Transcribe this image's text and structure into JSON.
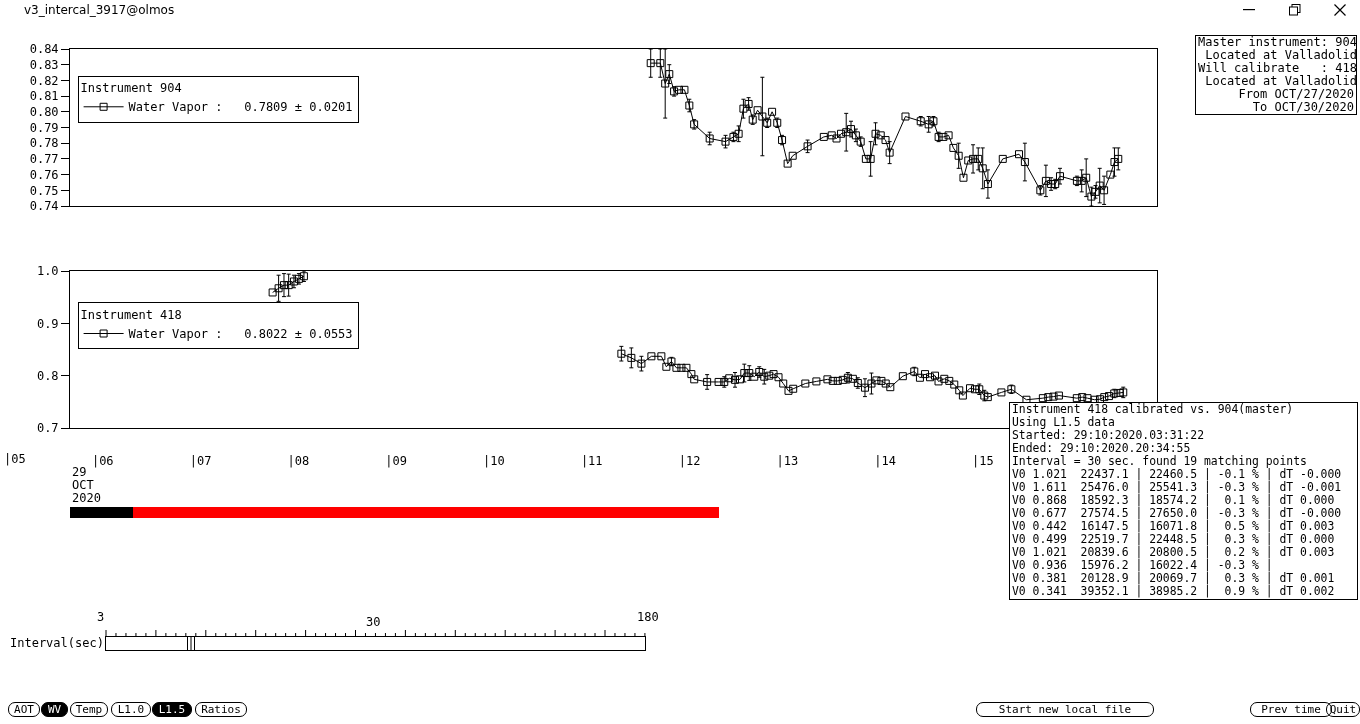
{
  "chart_data": [
    {
      "type": "line",
      "legend_title": "Instrument 904",
      "legend": "top left",
      "marker": "square",
      "line_style": "solid",
      "tick_labels": "y",
      "xlim": [
        5.665,
        16.78
      ],
      "ylim": [
        0.74,
        0.84
      ],
      "yticks": [
        0.74,
        0.75,
        0.76,
        0.77,
        0.78,
        0.79,
        {
          "value": 0.8,
          "label": "0.80"
        },
        0.81,
        0.82,
        0.83,
        0.84
      ],
      "series": [
        {
          "name": "Water Vapor :   0.7809 ± 0.0201",
          "color": "#000000",
          "x": [
            11.603,
            11.701,
            11.751,
            11.793,
            11.842,
            11.892,
            11.948,
            11.998,
            12.047,
            12.206,
            12.368,
            12.449,
            12.502,
            12.551,
            12.604,
            12.646,
            12.696,
            12.745,
            12.794,
            12.844,
            12.897,
            12.946,
            13.003,
            13.055,
            13.207,
            13.373,
            13.454,
            13.503,
            13.549,
            13.602,
            13.651,
            13.701,
            13.75,
            13.803,
            13.852,
            13.902,
            13.955,
            14.004,
            14.046,
            14.208,
            14.364,
            14.445,
            14.494,
            14.547,
            14.596,
            14.649,
            14.698,
            14.752,
            14.801,
            14.85,
            14.899,
            14.952,
            14.998,
            15.051,
            15.203,
            15.369,
            15.429,
            15.587,
            15.644,
            15.697,
            15.739,
            15.788,
            15.961,
            16.01,
            16.056,
            16.109,
            16.151,
            16.194,
            16.239,
            16.303,
            16.345,
            16.384
          ],
          "values": [
            0.831,
            0.831,
            0.818,
            0.824,
            0.813,
            0.814,
            0.814,
            0.804,
            0.792,
            0.783,
            0.781,
            0.784,
            0.786,
            0.802,
            0.805,
            0.795,
            0.801,
            0.797,
            0.793,
            0.8,
            0.793,
            0.782,
            0.767,
            0.772,
            0.778,
            0.784,
            0.785,
            0.783,
            0.786,
            0.787,
            0.789,
            0.785,
            0.781,
            0.77,
            0.77,
            0.786,
            0.785,
            0.782,
            0.774,
            0.797,
            0.794,
            0.792,
            0.794,
            0.784,
            0.784,
            0.785,
            0.777,
            0.772,
            0.758,
            0.769,
            0.77,
            0.77,
            0.764,
            0.754,
            0.77,
            0.773,
            0.768,
            0.75,
            0.756,
            0.754,
            0.754,
            0.759,
            0.756,
            0.756,
            0.758,
            0.746,
            0.749,
            0.753,
            0.75,
            0.76,
            0.768,
            0.77
          ],
          "errors": [
            0.009,
            0.009,
            0.022,
            0.006,
            0.003,
            null,
            null,
            0.004,
            0.003,
            0.004,
            0.004,
            0.003,
            0.005,
            0.006,
            0.004,
            0.003,
            null,
            0.025,
            0.003,
            null,
            0.003,
            0.003,
            null,
            null,
            0.004,
            null,
            null,
            null,
            null,
            0.012,
            0.005,
            0.004,
            0.003,
            null,
            0.011,
            0.007,
            null,
            null,
            0.007,
            null,
            0.003,
            0.005,
            0.003,
            0.003,
            null,
            null,
            null,
            0.008,
            null,
            null,
            0.009,
            0.007,
            0.013,
            0.009,
            null,
            null,
            0.012,
            0.003,
            0.01,
            0.004,
            0.003,
            0.005,
            0.003,
            0.007,
            0.012,
            0.006,
            0.004,
            0.011,
            0.009,
            null,
            0.009,
            0.007
          ]
        }
      ],
      "annotations": [
        "v3_intercal_3917@olmos",
        "Master instrument: 904",
        " Located at Valladolid",
        "Will calibrate   : 418",
        " Located at Valladolid",
        "From OCT/27/2020",
        "To OCT/30/2020"
      ]
    },
    {
      "type": "line",
      "legend_title": "Instrument 418",
      "legend": "top left",
      "marker": "square",
      "line_style": "solid",
      "xlim": [
        5.665,
        16.78
      ],
      "ylim": [
        0.7,
        1.0
      ],
      "xticks": [
        {
          "value": 6,
          "label": "|06"
        },
        {
          "value": 7,
          "label": "|07"
        },
        {
          "value": 8,
          "label": "|08"
        },
        {
          "value": 9,
          "label": "|09"
        },
        {
          "value": 10,
          "label": "|10"
        },
        {
          "value": 11,
          "label": "|11"
        },
        {
          "value": 12,
          "label": "|12"
        },
        {
          "value": 13,
          "label": "|13"
        },
        {
          "value": 14,
          "label": "|14"
        },
        {
          "value": 15,
          "label": "|15"
        }
      ],
      "yticks": [
        0.7,
        0.8,
        0.9,
        {
          "value": 1.0,
          "label": "1.0"
        }
      ],
      "series": [
        {
          "name": "Water Vapor :   0.8022 ± 0.0553",
          "color": "#000000",
          "x": [
            7.737,
            7.798,
            7.853,
            7.901,
            7.955,
            8.006,
            8.057,
            9.5,
            11.303,
            11.405,
            11.508,
            11.61,
            11.712,
            11.763,
            11.815,
            11.866,
            11.917,
            11.968,
            12.019,
            12.048,
            12.18,
            12.297,
            12.355,
            12.406,
            12.465,
            12.516,
            12.56,
            12.611,
            12.662,
            12.713,
            12.764,
            12.815,
            12.859,
            12.91,
            12.958,
            13.012,
            13.06,
            13.184,
            13.297,
            13.41,
            13.465,
            13.516,
            13.567,
            13.619,
            13.67,
            13.721,
            13.794,
            13.86,
            13.911,
            13.962,
            14.006,
            14.053,
            14.181,
            14.298,
            14.356,
            14.408,
            14.459,
            14.51,
            14.546,
            14.605,
            14.656,
            14.707,
            14.758,
            14.795,
            14.868,
            14.919,
            14.963,
            15.014,
            15.05,
            15.189,
            15.291,
            15.445,
            15.613,
            15.668,
            15.722,
            15.777,
            15.96,
            16.015,
            16.069,
            16.142,
            16.197,
            16.241,
            16.289,
            16.343,
            16.398,
            16.435
          ],
          "values": [
            0.959,
            0.967,
            0.973,
            0.973,
            0.98,
            0.985,
            0.99,
            null,
            0.842,
            0.834,
            0.823,
            0.837,
            0.837,
            0.817,
            0.827,
            0.815,
            0.815,
            0.815,
            0.803,
            0.793,
            0.788,
            0.788,
            0.788,
            0.795,
            0.792,
            0.793,
            0.805,
            0.805,
            0.798,
            0.807,
            0.798,
            0.8,
            0.803,
            0.797,
            0.785,
            0.771,
            0.775,
            0.785,
            0.789,
            0.793,
            0.79,
            0.79,
            0.792,
            0.796,
            0.794,
            0.786,
            0.777,
            0.785,
            0.791,
            0.79,
            0.785,
            0.778,
            0.799,
            0.808,
            0.796,
            0.803,
            0.797,
            0.8,
            0.789,
            0.794,
            0.79,
            0.783,
            0.772,
            0.762,
            0.776,
            0.774,
            0.774,
            0.762,
            0.759,
            0.768,
            0.774,
            0.754,
            0.757,
            0.759,
            0.76,
            0.762,
            0.757,
            0.759,
            0.757,
            0.754,
            0.755,
            0.759,
            0.761,
            0.766,
            0.767,
            0.768
          ],
          "errors": [
            null,
            0.025,
            0.022,
            0.021,
            0.012,
            0.01,
            0.01,
            null,
            0.014,
            0.019,
            0.014,
            null,
            null,
            null,
            0.008,
            null,
            null,
            null,
            null,
            null,
            0.014,
            null,
            0.01,
            null,
            0.014,
            null,
            0.017,
            0.014,
            null,
            0.01,
            0.014,
            null,
            null,
            null,
            null,
            null,
            null,
            null,
            null,
            null,
            null,
            null,
            null,
            0.01,
            null,
            0.01,
            0.017,
            0.02,
            null,
            null,
            null,
            null,
            null,
            0.008,
            null,
            null,
            null,
            null,
            null,
            null,
            null,
            null,
            null,
            null,
            null,
            null,
            0.01,
            0.01,
            null,
            null,
            0.008,
            null,
            null,
            null,
            null,
            null,
            null,
            null,
            null,
            null,
            null,
            null,
            null,
            0.008,
            null,
            0.01
          ]
        }
      ],
      "annotations": [
        "|05",
        "29",
        "OCT",
        "2020",
        "Instrument 418 calibrated vs. 904(master)",
        "Using L1.5 data",
        "Started: 29:10:2020.03:31:22",
        "Ended: 29:10:2020.20:34:55",
        "Interval = 30 sec. found 19 matching points",
        "V0 1.021  22437.1 | 22460.5 | -0.1 % | dT -0.000",
        "V0 1.611  25476.0 | 25541.3 | -0.3 % | dT -0.001",
        "V0 0.868  18592.3 | 18574.2 |  0.1 % | dT 0.000",
        "V0 0.677  27574.5 | 27650.0 | -0.3 % | dT -0.000",
        "V0 0.442  16147.5 | 16071.8 |  0.5 % | dT 0.003",
        "V0 0.499  22519.7 | 22448.5 |  0.3 % | dT 0.000",
        "V0 1.021  20839.6 | 20800.5 |  0.2 % | dT 0.003",
        "V0 0.936  15976.2 | 16022.4 | -0.3 % |",
        "V0 0.381  20128.9 | 20069.7 |  0.3 % | dT 0.001",
        "V0 0.341  39352.1 | 38985.2 |  0.9 % | dT 0.002",
        "3",
        "30",
        "180",
        "Interval(sec)",
        "AOT",
        "WV",
        "Temp",
        "L1.0",
        "L1.5",
        "Ratios",
        "Start new local file",
        "Prev time",
        "Quit"
      ]
    }
  ]
}
